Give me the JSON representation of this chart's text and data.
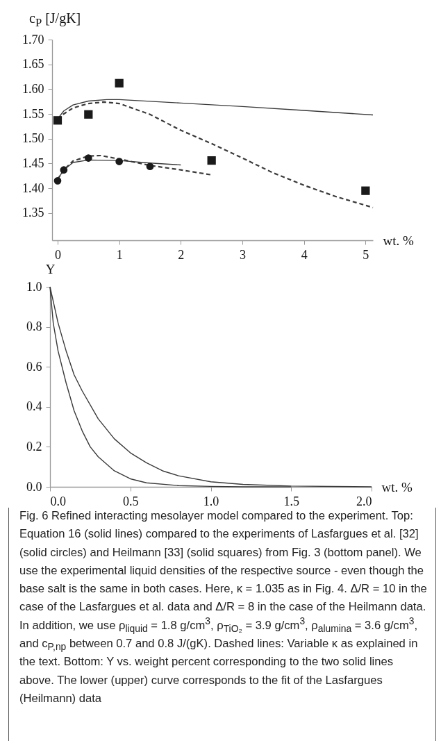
{
  "chart_data": [
    {
      "type": "line",
      "ylabel": "c$_{P}$ [J/gK]",
      "xlabel": "wt. %",
      "xlim": [
        -0.09,
        5.12
      ],
      "ylim": [
        1.295,
        1.7
      ],
      "xticks": [
        0,
        1,
        2,
        3,
        4,
        5
      ],
      "yticks": [
        {
          "value": 1.35,
          "label": "1.35"
        },
        {
          "value": 1.4,
          "label": "1.40"
        },
        {
          "value": 1.45,
          "label": "1.45"
        },
        {
          "value": 1.5,
          "label": "1.50"
        },
        {
          "value": 1.55,
          "label": "1.55"
        },
        {
          "value": 1.6,
          "label": "1.60"
        },
        {
          "value": 1.65,
          "label": "1.65"
        },
        {
          "value": 1.7,
          "label": "1.70"
        }
      ],
      "series": [
        {
          "line_style": "solid",
          "color": "#3a3a3a",
          "x": [
            0,
            0.1,
            0.25,
            0.5,
            0.8,
            1.0,
            2.0,
            3.0,
            4.0,
            5.12
          ],
          "values": [
            1.54,
            1.556,
            1.568,
            1.576,
            1.579,
            1.579,
            1.572,
            1.565,
            1.557,
            1.548
          ]
        },
        {
          "line_style": "dashed",
          "color": "#3a3a3a",
          "x": [
            0,
            0.1,
            0.25,
            0.5,
            0.75,
            1.0,
            1.5,
            2.0,
            2.5,
            3.0,
            3.5,
            4.0,
            4.5,
            5.12
          ],
          "values": [
            1.54,
            1.55,
            1.562,
            1.571,
            1.574,
            1.571,
            1.549,
            1.517,
            1.49,
            1.461,
            1.431,
            1.406,
            1.384,
            1.361
          ]
        },
        {
          "line_style": "solid",
          "color": "#3a3a3a",
          "x": [
            0,
            0.1,
            0.25,
            0.5,
            1.0,
            1.5,
            2.0
          ],
          "values": [
            1.418,
            1.437,
            1.452,
            1.457,
            1.456,
            1.451,
            1.447
          ]
        },
        {
          "line_style": "dashed",
          "color": "#3a3a3a",
          "x": [
            0,
            0.1,
            0.25,
            0.5,
            0.7,
            1.0,
            1.5,
            2.0,
            2.5
          ],
          "values": [
            1.418,
            1.437,
            1.455,
            1.465,
            1.466,
            1.459,
            1.446,
            1.437,
            1.427
          ]
        },
        {
          "type": "scatter",
          "marker": "square",
          "color": "#1a1a1a",
          "x": [
            0,
            0.5,
            1.0,
            2.5,
            5.0
          ],
          "values": [
            1.537,
            1.549,
            1.612,
            1.456,
            1.395
          ]
        },
        {
          "type": "scatter",
          "marker": "circle",
          "color": "#1a1a1a",
          "x": [
            0,
            0.1,
            0.5,
            1.0,
            1.5
          ],
          "values": [
            1.415,
            1.437,
            1.461,
            1.454,
            1.444
          ]
        }
      ]
    },
    {
      "type": "line",
      "ylabel": "Y",
      "xlabel": "wt. %",
      "xlim": [
        0,
        2
      ],
      "ylim": [
        0,
        1
      ],
      "xticks": [
        {
          "value": 0,
          "label": "0.0"
        },
        {
          "value": 0.5,
          "label": "0.5"
        },
        {
          "value": 1,
          "label": "1.0"
        },
        {
          "value": 1.5,
          "label": "1.5"
        },
        {
          "value": 2,
          "label": "2.0"
        }
      ],
      "yticks": [
        {
          "value": 0,
          "label": "0.0"
        },
        {
          "value": 0.2,
          "label": "0.2"
        },
        {
          "value": 0.4,
          "label": "0.4"
        },
        {
          "value": 0.6,
          "label": "0.6"
        },
        {
          "value": 0.8,
          "label": "0.8"
        },
        {
          "value": 1,
          "label": "1.0"
        }
      ],
      "series": [
        {
          "color": "#3a3a3a",
          "x": [
            0,
            0.02,
            0.05,
            0.1,
            0.15,
            0.2,
            0.25,
            0.3,
            0.4,
            0.5,
            0.6,
            0.8,
            1.0,
            1.2,
            1.5
          ],
          "values": [
            1,
            0.82,
            0.68,
            0.52,
            0.38,
            0.28,
            0.2,
            0.15,
            0.08,
            0.04,
            0.02,
            0.006,
            0.002,
            0,
            0
          ]
        },
        {
          "color": "#3a3a3a",
          "x": [
            0,
            0.05,
            0.1,
            0.15,
            0.2,
            0.3,
            0.4,
            0.5,
            0.6,
            0.7,
            0.8,
            1.0,
            1.2,
            1.5,
            2.0
          ],
          "values": [
            1,
            0.82,
            0.68,
            0.56,
            0.48,
            0.34,
            0.24,
            0.17,
            0.12,
            0.08,
            0.055,
            0.025,
            0.012,
            0.004,
            0
          ]
        }
      ],
      "annotations": [
        "Fig. 6 Refined interacting mesolayer model compared to the experiment. Top: Equation 16 (solid lines) compared to the experiments of Lasfargues et al. [32] (solid circles) and Heilmann [33] (solid squares) from Fig. 3 (bottom panel). We use the experimental liquid densities of the respective source - even though the base salt is the same in both cases. Here, κ = 1.035 as in Fig. 4. Δ/R = 10 in the case of the Lasfargues et al. data and Δ/R = 8 in the case of the Heilmann data. In addition, we use ρ$_{liquid}$ = 1.8 g/cm$^{3}$, ρ$_{TiO₂}$ = 3.9 g/cm$^{3}$, ρ$_{alumina}$ = 3.6 g/cm$^{3}$, and c$_{P,np}$ between 0.7 and 0.8 J/(gK). Dashed lines: Variable κ as explained in the text. Bottom: Y vs. weight percent corresponding to the two solid lines above. The lower (upper) curve corresponds to the fit of the Lasfargues (Heilmann) data"
      ]
    }
  ]
}
